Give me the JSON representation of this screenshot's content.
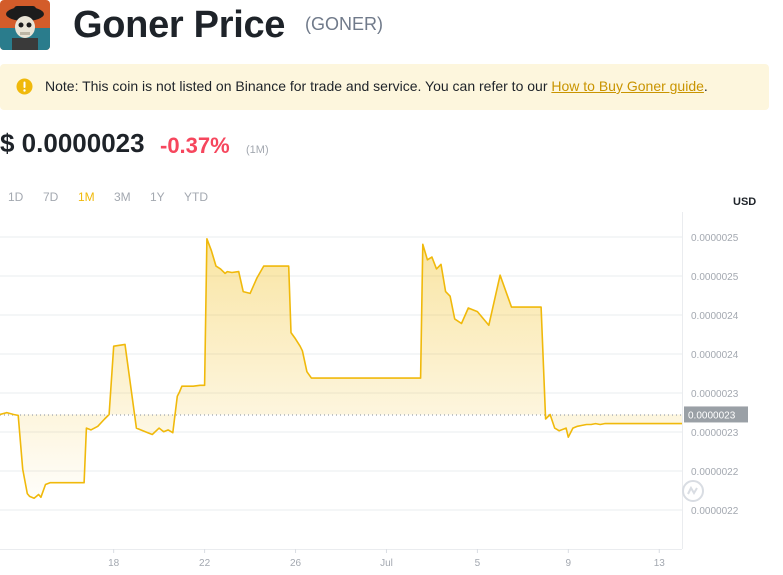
{
  "header": {
    "title": "Goner Price",
    "ticker": "(GONER)"
  },
  "note": {
    "text": "Note: This coin is not listed on Binance for trade and service. You can refer to our ",
    "link": "How to Buy Goner guide",
    "suffix": "."
  },
  "price": {
    "value": "$ 0.0000023",
    "change": "-0.37%",
    "period": "(1M)"
  },
  "ranges": [
    {
      "label": "1D",
      "active": false
    },
    {
      "label": "7D",
      "active": false
    },
    {
      "label": "1M",
      "active": true
    },
    {
      "label": "3M",
      "active": false
    },
    {
      "label": "1Y",
      "active": false
    },
    {
      "label": "YTD",
      "active": false
    }
  ],
  "colors": {
    "line": "#f0b90b",
    "negative": "#f6465d",
    "link": "#c99400",
    "note_bg": "#fdf6dd",
    "grid": "#eaecef",
    "current_label_bg": "#9aa0a6"
  },
  "chart_data": {
    "type": "area",
    "currency_label": "USD",
    "x_tick_labels": [
      "18",
      "22",
      "26",
      "Jul",
      "5",
      "9",
      "13"
    ],
    "y_tick_labels": [
      "0.0000025",
      "0.0000025",
      "0.0000024",
      "0.0000024",
      "0.0000023",
      "0.0000023",
      "0.0000022",
      "0.0000022"
    ],
    "current_value_label": "0.0000023",
    "x": [
      0.0,
      0.3,
      0.6,
      0.8,
      1.0,
      1.2,
      1.3,
      1.5,
      1.7,
      1.8,
      2.0,
      2.2,
      2.5,
      2.8,
      3.0,
      3.3,
      3.5,
      3.7,
      3.8,
      4.0,
      4.3,
      4.6,
      4.8,
      5.0,
      5.5,
      6.0,
      6.5,
      6.7,
      7.0,
      7.2,
      7.4,
      7.6,
      7.8,
      7.9,
      8.0,
      8.2,
      8.5,
      8.8,
      9.0,
      9.1,
      9.3,
      9.5,
      9.7,
      9.9,
      10.0,
      10.2,
      10.5,
      10.7,
      11.0,
      11.3,
      11.6,
      12.0,
      12.4,
      12.6,
      12.7,
      12.8,
      13.0,
      13.2,
      13.3,
      13.5,
      13.7,
      13.9,
      14.2,
      14.4,
      14.6,
      14.8,
      15.0,
      15.2,
      15.4,
      15.6,
      16.0,
      16.5,
      17.0,
      17.5,
      18.0,
      18.3,
      18.5,
      18.6,
      18.8,
      19.0,
      19.2,
      19.4,
      19.6,
      19.8,
      20.0,
      20.3,
      20.6,
      21.0,
      21.5,
      22.0,
      22.5,
      23.0,
      23.5,
      23.8,
      24.0,
      24.2,
      24.4,
      24.6,
      24.9,
      25.0,
      25.2,
      25.4,
      25.6,
      25.8,
      26.0,
      26.2,
      26.4,
      26.6,
      26.8,
      27.0,
      27.2,
      27.5,
      28.0,
      28.5,
      29.0,
      29.5,
      30.0
    ],
    "values": [
      2.305e-06,
      2.307e-06,
      2.305e-06,
      2.304e-06,
      2.245e-06,
      2.218e-06,
      2.215e-06,
      2.213e-06,
      2.217e-06,
      2.214e-06,
      2.228e-06,
      2.23e-06,
      2.23e-06,
      2.23e-06,
      2.23e-06,
      2.23e-06,
      2.23e-06,
      2.23e-06,
      2.29e-06,
      2.288e-06,
      2.292e-06,
      2.3e-06,
      2.305e-06,
      2.38e-06,
      2.382e-06,
      2.29e-06,
      2.285e-06,
      2.283e-06,
      2.29e-06,
      2.286e-06,
      2.288e-06,
      2.285e-06,
      2.325e-06,
      2.33e-06,
      2.336e-06,
      2.336e-06,
      2.336e-06,
      2.337e-06,
      2.337e-06,
      2.498e-06,
      2.485e-06,
      2.468e-06,
      2.465e-06,
      2.46e-06,
      2.462e-06,
      2.461e-06,
      2.462e-06,
      2.44e-06,
      2.438e-06,
      2.455e-06,
      2.468e-06,
      2.468e-06,
      2.468e-06,
      2.468e-06,
      2.468e-06,
      2.395e-06,
      2.388e-06,
      2.38e-06,
      2.375e-06,
      2.352e-06,
      2.345e-06,
      2.345e-06,
      2.345e-06,
      2.345e-06,
      2.345e-06,
      2.345e-06,
      2.345e-06,
      2.345e-06,
      2.345e-06,
      2.345e-06,
      2.345e-06,
      2.345e-06,
      2.345e-06,
      2.345e-06,
      2.345e-06,
      2.345e-06,
      2.345e-06,
      2.492e-06,
      2.475e-06,
      2.478e-06,
      2.465e-06,
      2.47e-06,
      2.44e-06,
      2.435e-06,
      2.41e-06,
      2.405e-06,
      2.422e-06,
      2.418e-06,
      2.403e-06,
      2.458e-06,
      2.423e-06,
      2.423e-06,
      2.423e-06,
      2.423e-06,
      2.3e-06,
      2.305e-06,
      2.29e-06,
      2.287e-06,
      2.29e-06,
      2.28e-06,
      2.29e-06,
      2.292e-06,
      2.293e-06,
      2.294e-06,
      2.294e-06,
      2.295e-06,
      2.294e-06,
      2.295e-06,
      2.295e-06,
      2.295e-06,
      2.295e-06,
      2.295e-06,
      2.295e-06,
      2.295e-06,
      2.295e-06,
      2.295e-06,
      2.295e-06
    ],
    "grid": true
  }
}
